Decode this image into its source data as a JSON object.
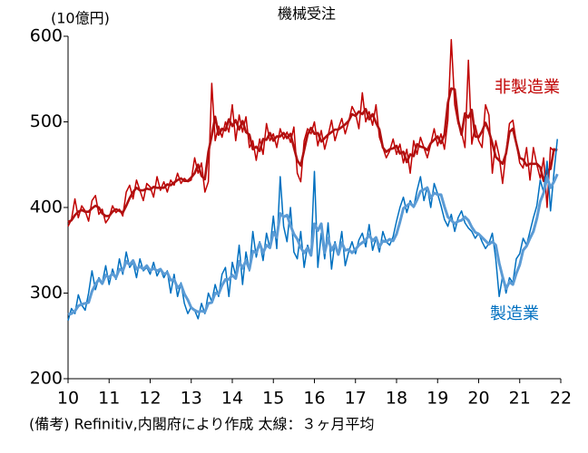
{
  "chart_data": {
    "type": "line",
    "title": "機械受注",
    "y_unit": "(10億円)",
    "note": "(備考) Refinitiv,内閣府により作成 太線：３ヶ月平均",
    "xlim": [
      10,
      22
    ],
    "xticks": [
      10,
      11,
      12,
      13,
      14,
      15,
      16,
      17,
      18,
      19,
      20,
      21,
      22
    ],
    "ylim": [
      200,
      600
    ],
    "yticks": [
      200,
      300,
      400,
      500,
      600
    ],
    "grid": false,
    "x": [
      10,
      10.083,
      10.167,
      10.25,
      10.333,
      10.417,
      10.5,
      10.583,
      10.667,
      10.75,
      10.833,
      10.917,
      11,
      11.083,
      11.167,
      11.25,
      11.333,
      11.417,
      11.5,
      11.583,
      11.667,
      11.75,
      11.833,
      11.917,
      12,
      12.083,
      12.167,
      12.25,
      12.333,
      12.417,
      12.5,
      12.583,
      12.667,
      12.75,
      12.833,
      12.917,
      13,
      13.083,
      13.167,
      13.25,
      13.333,
      13.417,
      13.5,
      13.583,
      13.667,
      13.75,
      13.833,
      13.917,
      14,
      14.083,
      14.167,
      14.25,
      14.333,
      14.417,
      14.5,
      14.583,
      14.667,
      14.75,
      14.833,
      14.917,
      15,
      15.083,
      15.167,
      15.25,
      15.333,
      15.417,
      15.5,
      15.583,
      15.667,
      15.75,
      15.833,
      15.917,
      16,
      16.083,
      16.167,
      16.25,
      16.333,
      16.417,
      16.5,
      16.583,
      16.667,
      16.75,
      16.833,
      16.917,
      17,
      17.083,
      17.167,
      17.25,
      17.333,
      17.417,
      17.5,
      17.583,
      17.667,
      17.75,
      17.833,
      17.917,
      18,
      18.083,
      18.167,
      18.25,
      18.333,
      18.417,
      18.5,
      18.583,
      18.667,
      18.75,
      18.833,
      18.917,
      19,
      19.083,
      19.167,
      19.25,
      19.333,
      19.417,
      19.5,
      19.583,
      19.667,
      19.75,
      19.833,
      19.917,
      20,
      20.083,
      20.167,
      20.25,
      20.333,
      20.417,
      20.5,
      20.583,
      20.667,
      20.75,
      20.833,
      20.917,
      21,
      21.083,
      21.167,
      21.25,
      21.333,
      21.417,
      21.5,
      21.583,
      21.667,
      21.75,
      21.833,
      21.917
    ],
    "series": [
      {
        "name": "非製造業",
        "color": "#c00000",
        "width": 1.5,
        "values": [
          378,
          386,
          410,
          388,
          402,
          396,
          384,
          408,
          414,
          392,
          398,
          382,
          388,
          402,
          394,
          398,
          390,
          418,
          426,
          410,
          432,
          420,
          408,
          428,
          424,
          412,
          436,
          420,
          430,
          418,
          432,
          426,
          440,
          428,
          434,
          430,
          432,
          458,
          440,
          452,
          418,
          430,
          545,
          478,
          495,
          482,
          500,
          488,
          520,
          478,
          508,
          488,
          506,
          470,
          478,
          455,
          480,
          462,
          498,
          478,
          486,
          470,
          492,
          480,
          488,
          476,
          494,
          440,
          430,
          478,
          492,
          486,
          500,
          472,
          490,
          468,
          484,
          502,
          478,
          492,
          504,
          486,
          500,
          518,
          510,
          492,
          534,
          500,
          512,
          496,
          520,
          482,
          470,
          458,
          466,
          480,
          462,
          474,
          452,
          468,
          440,
          478,
          462,
          482,
          470,
          458,
          474,
          492,
          472,
          486,
          468,
          502,
          596,
          520,
          498,
          488,
          470,
          572,
          474,
          496,
          478,
          470,
          520,
          508,
          440,
          478,
          460,
          428,
          464,
          498,
          502,
          476,
          452,
          446,
          470,
          432,
          470,
          450,
          434,
          458,
          400,
          470,
          466,
          468
        ]
      },
      {
        "color": "#b01010",
        "width": 2.6,
        "values": [
          383,
          385,
          391,
          395,
          397,
          395,
          395,
          399,
          402,
          400,
          393,
          390,
          390,
          395,
          398,
          396,
          394,
          402,
          411,
          418,
          423,
          420,
          420,
          422,
          421,
          424,
          423,
          423,
          423,
          427,
          426,
          429,
          432,
          434,
          431,
          431,
          435,
          440,
          450,
          437,
          433,
          465,
          484,
          506,
          485,
          492,
          490,
          503,
          495,
          502,
          491,
          501,
          488,
          485,
          468,
          471,
          466,
          480,
          479,
          487,
          478,
          483,
          483,
          487,
          481,
          486,
          470,
          455,
          449,
          467,
          485,
          493,
          486,
          487,
          477,
          481,
          485,
          488,
          491,
          491,
          494,
          497,
          501,
          509,
          507,
          512,
          509,
          515,
          503,
          509,
          499,
          491,
          470,
          465,
          468,
          469,
          472,
          463,
          465,
          453,
          462,
          460,
          474,
          471,
          470,
          467,
          475,
          479,
          483,
          475,
          485,
          522,
          539,
          538,
          502,
          485,
          510,
          505,
          514,
          483,
          482,
          489,
          499,
          489,
          475,
          459,
          455,
          451,
          463,
          488,
          492,
          475,
          458,
          456,
          449,
          451,
          451,
          451,
          447,
          431,
          443,
          445,
          468,
          467
        ]
      },
      {
        "name": "製造業",
        "color": "#0070c0",
        "width": 1.5,
        "values": [
          268,
          282,
          276,
          298,
          286,
          280,
          300,
          326,
          304,
          318,
          312,
          332,
          310,
          328,
          316,
          340,
          322,
          348,
          330,
          336,
          318,
          340,
          326,
          330,
          322,
          336,
          320,
          328,
          318,
          326,
          300,
          322,
          296,
          312,
          288,
          276,
          284,
          280,
          270,
          288,
          276,
          300,
          290,
          310,
          296,
          322,
          330,
          296,
          336,
          320,
          356,
          310,
          348,
          326,
          372,
          342,
          360,
          338,
          370,
          352,
          390,
          352,
          436,
          378,
          360,
          400,
          348,
          340,
          372,
          330,
          356,
          346,
          442,
          330,
          370,
          340,
          382,
          328,
          360,
          346,
          372,
          332,
          348,
          360,
          346,
          362,
          370,
          354,
          380,
          350,
          364,
          348,
          372,
          360,
          356,
          366,
          384,
          400,
          412,
          394,
          408,
          400,
          420,
          436,
          408,
          424,
          400,
          428,
          416,
          402,
          386,
          378,
          392,
          372,
          388,
          396,
          382,
          376,
          372,
          364,
          370,
          360,
          352,
          358,
          370,
          340,
          296,
          320,
          300,
          318,
          312,
          340,
          346,
          364,
          356,
          372,
          388,
          402,
          432,
          418,
          454,
          396,
          440,
          480
        ]
      },
      {
        "color": "#5b9bd5",
        "width": 3,
        "values": [
          275,
          276,
          279,
          285,
          287,
          288,
          289,
          302,
          310,
          316,
          311,
          321,
          318,
          323,
          318,
          328,
          326,
          337,
          333,
          338,
          328,
          331,
          328,
          332,
          326,
          329,
          326,
          328,
          322,
          324,
          315,
          316,
          306,
          310,
          299,
          292,
          283,
          280,
          278,
          279,
          278,
          288,
          289,
          300,
          299,
          309,
          316,
          316,
          321,
          317,
          337,
          329,
          338,
          328,
          349,
          347,
          358,
          347,
          356,
          353,
          371,
          365,
          393,
          389,
          391,
          379,
          369,
          363,
          353,
          347,
          353,
          344,
          381,
          373,
          381,
          347,
          364,
          350,
          357,
          345,
          359,
          350,
          351,
          347,
          351,
          356,
          359,
          362,
          368,
          361,
          365,
          354,
          361,
          360,
          363,
          361,
          369,
          383,
          399,
          402,
          405,
          401,
          409,
          419,
          421,
          423,
          411,
          417,
          415,
          415,
          401,
          389,
          385,
          381,
          384,
          385,
          389,
          385,
          377,
          371,
          369,
          365,
          361,
          357,
          360,
          356,
          335,
          319,
          305,
          313,
          310,
          323,
          333,
          350,
          355,
          364,
          372,
          387,
          407,
          417,
          435,
          423,
          430,
          439
        ]
      }
    ]
  }
}
